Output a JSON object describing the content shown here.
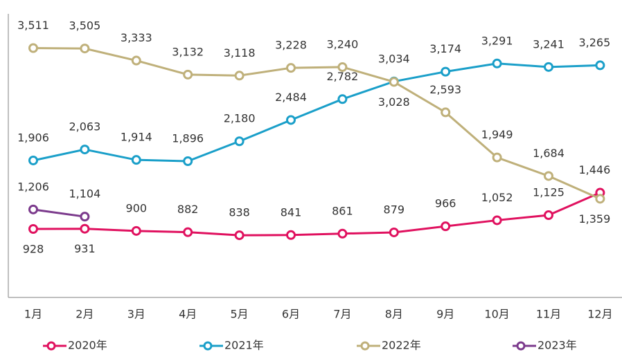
{
  "chart_data": {
    "type": "line",
    "categories": [
      "1月",
      "2月",
      "3月",
      "4月",
      "5月",
      "6月",
      "7月",
      "8月",
      "9月",
      "10月",
      "11月",
      "12月"
    ],
    "ylim": [
      -50,
      4000
    ],
    "legend": "bottom",
    "series": [
      {
        "name": "2020年",
        "color": "#e0115f",
        "values": [
          928,
          931,
          900,
          882,
          838,
          841,
          861,
          879,
          966,
          1052,
          1125,
          1446
        ],
        "value_labels": [
          "928",
          "931",
          "900",
          "882",
          "838",
          "841",
          "861",
          "879",
          "966",
          "1,052",
          "1,125",
          "1,446"
        ]
      },
      {
        "name": "2021年",
        "color": "#1a9fc9",
        "values": [
          1906,
          2063,
          1914,
          1896,
          2180,
          2484,
          2782,
          3034,
          3174,
          3291,
          3241,
          3265
        ],
        "value_labels": [
          "1,906",
          "2,063",
          "1,914",
          "1,896",
          "2,180",
          "2,484",
          "2,782",
          "3,034",
          "3,174",
          "3,291",
          "3,241",
          "3,265"
        ]
      },
      {
        "name": "2022年",
        "color": "#bfb07a",
        "values": [
          3511,
          3505,
          3333,
          3132,
          3118,
          3228,
          3240,
          3028,
          2593,
          1949,
          1684,
          1359
        ],
        "value_labels": [
          "3,511",
          "3,505",
          "3,333",
          "3,132",
          "3,118",
          "3,228",
          "3,240",
          "3,028",
          "2,593",
          "1,949",
          "1,684",
          "1,359"
        ]
      },
      {
        "name": "2023年",
        "color": "#7b3a8c",
        "values": [
          1206,
          1104,
          null,
          null,
          null,
          null,
          null,
          null,
          null,
          null,
          null,
          null
        ],
        "value_labels": [
          "1,206",
          "1,104",
          null,
          null,
          null,
          null,
          null,
          null,
          null,
          null,
          null,
          null
        ]
      }
    ]
  }
}
